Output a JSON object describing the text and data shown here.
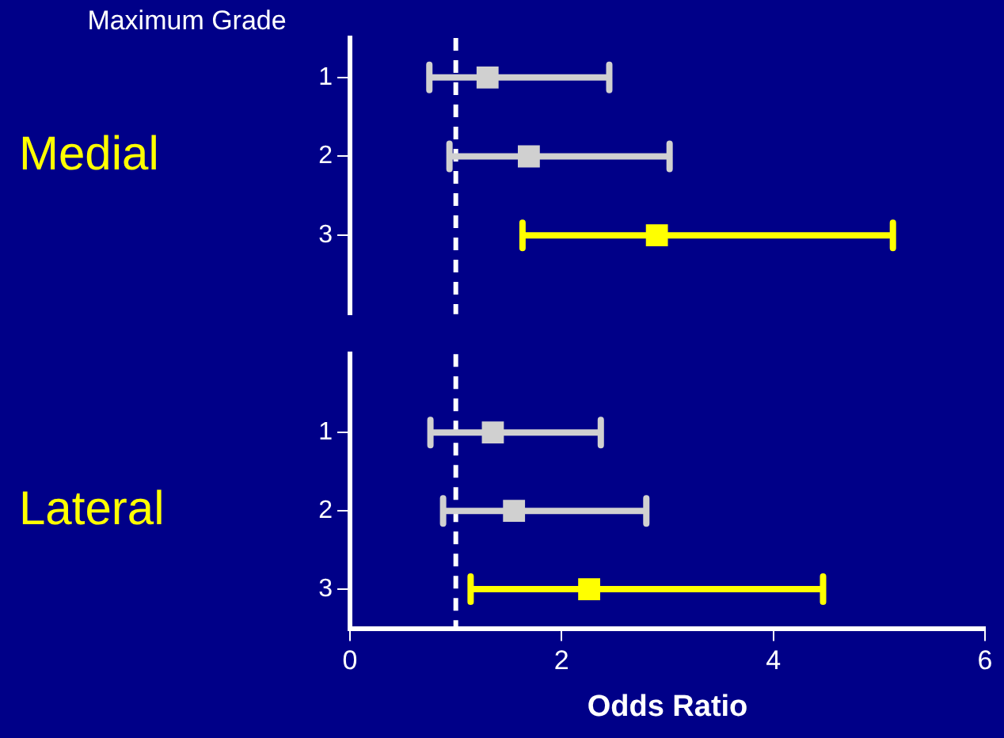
{
  "chart_data": [
    {
      "type": "scatter",
      "ylabel": "Maximum Grade",
      "x": [
        1.3,
        1.69,
        2.9
      ],
      "values": [
        1,
        2,
        3
      ],
      "xerrors": [
        [
          0.75,
          2.45
        ],
        [
          0.94,
          3.02
        ],
        [
          1.63,
          5.13
        ]
      ],
      "colors": [
        "#d0d0d0",
        "#d0d0d0",
        "#ffff00"
      ],
      "marker": "square",
      "xlim": [
        0,
        6
      ],
      "ylim": [
        4,
        0.5
      ],
      "yticks": [
        1,
        2,
        3
      ],
      "tick_labels": "y",
      "ref_lines": [
        {
          "axis": "x",
          "value": 1,
          "color": "#ffffff",
          "line_style": "dashed"
        }
      ],
      "annotations": [
        "Medial"
      ],
      "grid": false,
      "legend": false
    },
    {
      "type": "scatter",
      "xlabel": "Odds Ratio",
      "x": [
        1.35,
        1.55,
        2.26
      ],
      "values": [
        1,
        2,
        3
      ],
      "xerrors": [
        [
          0.76,
          2.37
        ],
        [
          0.88,
          2.8
        ],
        [
          1.14,
          4.47
        ]
      ],
      "colors": [
        "#d0d0d0",
        "#d0d0d0",
        "#ffff00"
      ],
      "marker": "square",
      "xlim": [
        0,
        6
      ],
      "xticks": [
        0,
        2,
        4,
        6
      ],
      "ylim": [
        3.5,
        0
      ],
      "yticks": [
        1,
        2,
        3
      ],
      "ref_lines": [
        {
          "axis": "x",
          "value": 1,
          "color": "#ffffff",
          "line_style": "dashed"
        }
      ],
      "annotations": [
        "Lateral"
      ],
      "grid": false,
      "legend": false
    }
  ]
}
